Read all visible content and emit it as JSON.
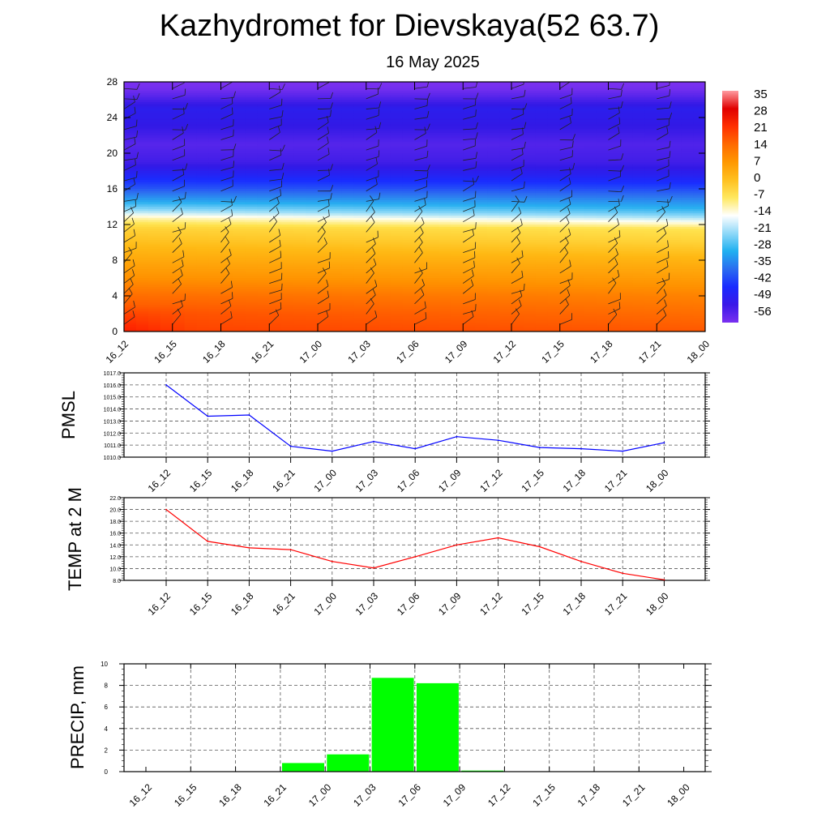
{
  "header": {
    "title": "Kazhydromet for Dievskaya(52 63.7)",
    "subtitle": "16 May 2025"
  },
  "chart_data": [
    {
      "type": "heatmap",
      "title": "",
      "xlabel": "",
      "ylabel": "",
      "x_tick_labels": [
        "16_12",
        "16_15",
        "16_18",
        "16_21",
        "17_00",
        "17_03",
        "17_06",
        "17_09",
        "17_12",
        "17_15",
        "17_18",
        "17_21",
        "18_00"
      ],
      "y_ticks": [
        0,
        4,
        8,
        12,
        16,
        20,
        24,
        28
      ],
      "ylim": [
        0,
        28
      ],
      "colorbar": {
        "labels": [
          "35",
          "28",
          "21",
          "14",
          "7",
          "0",
          "-7",
          "-14",
          "-21",
          "-28",
          "-35",
          "-42",
          "-49",
          "-56"
        ],
        "range": [
          -60,
          38
        ],
        "colors": [
          "#ff9aa0",
          "#e00000",
          "#ff3000",
          "#ff6a00",
          "#ff9800",
          "#ffc020",
          "#ffe860",
          "#ffffff",
          "#8fd8f8",
          "#20b0f0",
          "#2a6cf0",
          "#1a2aff",
          "#3a18e8",
          "#7a30f0"
        ]
      },
      "temperature_profile": {
        "levels": [
          0,
          2,
          4,
          6,
          8,
          10,
          11.5,
          12.5,
          13.5,
          14.5,
          16,
          17.5,
          19,
          21,
          23,
          25,
          27,
          28
        ],
        "values_first": [
          19,
          17,
          13,
          8,
          4,
          0,
          -3,
          -8,
          -16,
          -24,
          -36,
          -45,
          -52,
          -55,
          -50,
          -48,
          -58,
          -60
        ],
        "values_last": [
          16,
          13,
          10,
          6,
          2,
          -3,
          -6,
          -14,
          -22,
          -28,
          -38,
          -47,
          -52,
          -54,
          -50,
          -48,
          -58,
          -60
        ]
      },
      "wind_barbs": "present"
    },
    {
      "type": "line",
      "ylabel": "PMSL",
      "categories": [
        "16_12",
        "16_15",
        "16_18",
        "16_21",
        "17_00",
        "17_03",
        "17_06",
        "17_09",
        "17_12",
        "17_15",
        "17_18",
        "17_21",
        "18_00"
      ],
      "values": [
        1016.0,
        1013.4,
        1013.5,
        1010.9,
        1010.5,
        1011.3,
        1010.7,
        1011.7,
        1011.4,
        1010.8,
        1010.7,
        1010.5,
        1011.2
      ],
      "ylim": [
        1010.0,
        1017.0
      ],
      "y_tick_labels": [
        "1010.0",
        "1011.0",
        "1012.0",
        "1013.0",
        "1014.0",
        "1015.0",
        "1016.0",
        "1017.0"
      ],
      "grid": true,
      "color": "#0000ff"
    },
    {
      "type": "line",
      "ylabel": "TEMP at 2 M",
      "categories": [
        "16_12",
        "16_15",
        "16_18",
        "16_21",
        "17_00",
        "17_03",
        "17_06",
        "17_09",
        "17_12",
        "17_15",
        "17_18",
        "17_21",
        "18_00"
      ],
      "values": [
        20.0,
        14.6,
        13.5,
        13.2,
        11.2,
        10.1,
        12.0,
        14.0,
        15.2,
        13.7,
        11.2,
        9.2,
        8.1
      ],
      "ylim": [
        8.0,
        22.0
      ],
      "y_tick_labels": [
        "8.0",
        "10.0",
        "12.0",
        "14.0",
        "16.0",
        "18.0",
        "20.0",
        "22.0"
      ],
      "grid": true,
      "color": "#ff0000"
    },
    {
      "type": "bar",
      "ylabel": "PRECIP, mm",
      "categories": [
        "16_12",
        "16_15",
        "16_18",
        "16_21",
        "17_00",
        "17_03",
        "17_06",
        "17_09",
        "17_12",
        "17_15",
        "17_18",
        "17_21",
        "18_00"
      ],
      "values": [
        0,
        0,
        0,
        0.8,
        1.6,
        8.7,
        8.2,
        0.1,
        0,
        0,
        0,
        0,
        0
      ],
      "ylim": [
        0,
        10
      ],
      "y_tick_labels": [
        "0",
        "2",
        "4",
        "6",
        "8",
        "10"
      ],
      "grid": true,
      "color": "#00ff00"
    }
  ]
}
